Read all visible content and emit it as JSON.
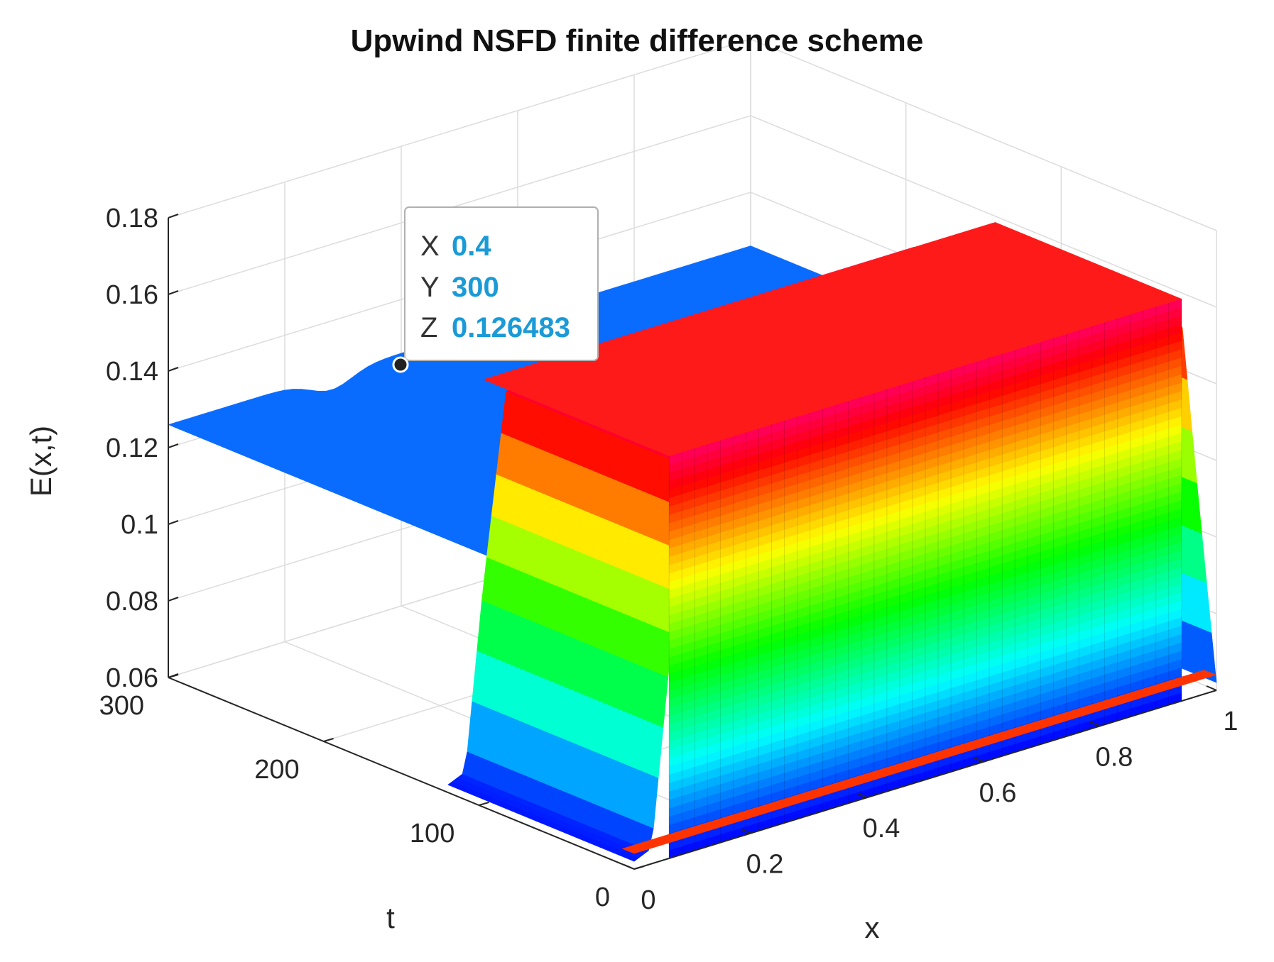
{
  "chart_data": {
    "type": "surface",
    "title": "Upwind NSFD finite difference scheme",
    "xlabel": "x",
    "ylabel": "t",
    "zlabel": "E(x,t)",
    "xlim": [
      0,
      1
    ],
    "ylim": [
      0,
      300
    ],
    "zlim": [
      0.06,
      0.18
    ],
    "x_ticks": [
      "0",
      "0.2",
      "0.4",
      "0.6",
      "0.8",
      "1"
    ],
    "y_ticks": [
      "0",
      "100",
      "200",
      "300"
    ],
    "z_ticks": [
      "0.06",
      "0.08",
      "0.1",
      "0.12",
      "0.14",
      "0.16",
      "0.18"
    ],
    "colormap": "hsv",
    "grid": true,
    "profiles": [
      {
        "t": 300,
        "x": [
          0,
          0.15,
          0.25,
          0.3,
          0.4,
          0.45,
          0.5,
          0.55,
          0.6,
          0.65,
          0.7,
          0.8,
          0.9,
          1
        ],
        "E": [
          0.126,
          0.126,
          0.125,
          0.124,
          0.126,
          0.127,
          0.128,
          0.13,
          0.132,
          0.13,
          0.129,
          0.129,
          0.13,
          0.13
        ]
      },
      {
        "t": 0,
        "x": [
          0,
          0.03,
          0.06,
          0.1,
          0.2,
          0.4,
          0.6,
          0.8,
          0.94,
          0.97,
          1
        ],
        "E": [
          0.062,
          0.064,
          0.11,
          0.16,
          0.165,
          0.165,
          0.165,
          0.165,
          0.16,
          0.11,
          0.062
        ]
      }
    ],
    "datatip": {
      "x_label": "X",
      "x": "0.4",
      "y_label": "Y",
      "y": "300",
      "z_label": "Z",
      "z": "0.126483"
    }
  }
}
